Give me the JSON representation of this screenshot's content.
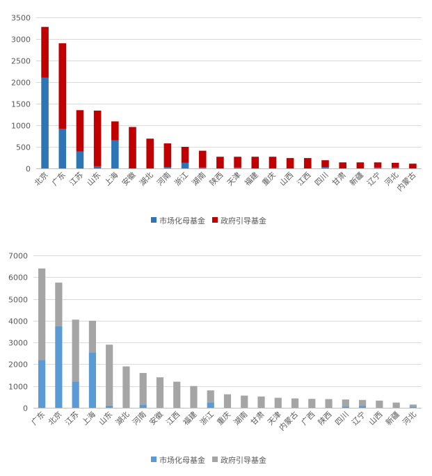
{
  "chart_data": [
    {
      "type": "bar",
      "stacked": true,
      "title": "",
      "xlabel": "",
      "ylabel": "",
      "ylim": [
        0,
        3500
      ],
      "ytick_step": 500,
      "yticks": [
        "0",
        "500",
        "1000",
        "1500",
        "2000",
        "2500",
        "3000",
        "3500"
      ],
      "grid": true,
      "legend_position": "bottom",
      "categories": [
        "北京",
        "广东",
        "江苏",
        "山东",
        "上海",
        "安徽",
        "湖北",
        "河南",
        "浙江",
        "湖南",
        "陕西",
        "天津",
        "福建",
        "重庆",
        "山西",
        "江西",
        "四川",
        "甘肃",
        "新疆",
        "辽宁",
        "河北",
        "内蒙古"
      ],
      "series": [
        {
          "name": "市场化母基金",
          "color": "#2e75b6",
          "values": [
            2100,
            920,
            390,
            50,
            650,
            0,
            0,
            30,
            130,
            20,
            0,
            20,
            0,
            0,
            0,
            0,
            30,
            0,
            0,
            20,
            20,
            0
          ]
        },
        {
          "name": "政府引导基金",
          "color": "#c00000",
          "values": [
            1180,
            1980,
            960,
            1290,
            440,
            960,
            690,
            550,
            370,
            390,
            270,
            250,
            270,
            270,
            240,
            240,
            160,
            140,
            140,
            120,
            110,
            110
          ]
        }
      ]
    },
    {
      "type": "bar",
      "stacked": true,
      "title": "",
      "xlabel": "",
      "ylabel": "",
      "ylim": [
        0,
        7000
      ],
      "ytick_step": 1000,
      "yticks": [
        "0",
        "1000",
        "2000",
        "3000",
        "4000",
        "5000",
        "6000",
        "7000"
      ],
      "grid": true,
      "legend_position": "bottom",
      "categories": [
        "广东",
        "北京",
        "江苏",
        "上海",
        "山东",
        "湖北",
        "河南",
        "安徽",
        "江西",
        "福建",
        "浙江",
        "重庆",
        "湖南",
        "甘肃",
        "天津",
        "内蒙古",
        "广西",
        "陕西",
        "四川",
        "辽宁",
        "山西",
        "新疆",
        "河北"
      ],
      "series": [
        {
          "name": "市场化母基金",
          "color": "#5b9bd5",
          "values": [
            2200,
            3750,
            1200,
            2550,
            100,
            0,
            150,
            0,
            0,
            0,
            250,
            0,
            0,
            0,
            0,
            0,
            0,
            0,
            60,
            80,
            0,
            0,
            50
          ]
        },
        {
          "name": "政府引导基金",
          "color": "#a5a5a5",
          "values": [
            4200,
            2000,
            2850,
            1450,
            2800,
            1900,
            1450,
            1400,
            1200,
            1000,
            550,
            620,
            560,
            520,
            460,
            430,
            410,
            400,
            320,
            280,
            330,
            240,
            100
          ]
        }
      ]
    }
  ]
}
